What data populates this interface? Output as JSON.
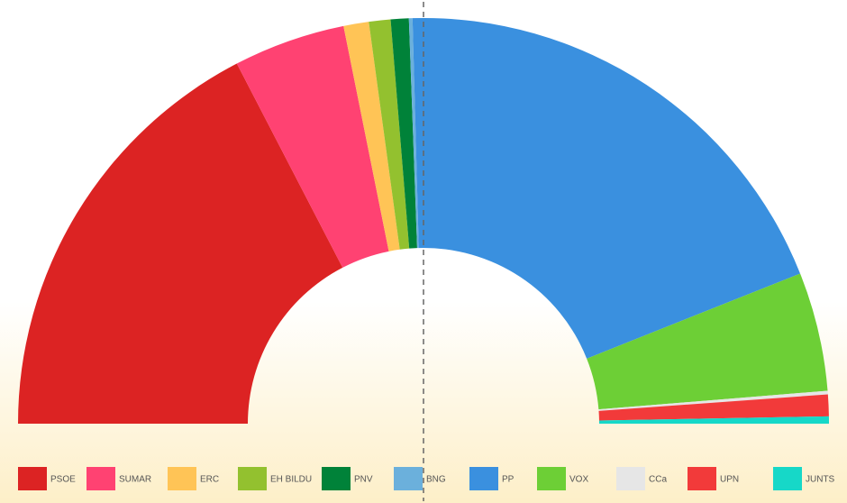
{
  "chart_data": {
    "type": "half-donut",
    "categories": [
      "PSOE",
      "SUMAR",
      "ERC",
      "EH BILDU",
      "PNV",
      "BNG",
      "PP",
      "VOX",
      "CCa",
      "UPN",
      "JUNTS"
    ],
    "values": [
      121,
      31,
      7,
      6,
      5,
      1,
      135,
      33,
      1,
      6,
      2
    ],
    "colors": [
      "#dc2323",
      "#ff4272",
      "#ffc456",
      "#93c12f",
      "#008239",
      "#6bb0dc",
      "#3a90df",
      "#6dcf36",
      "#e6e6e6",
      "#f23a3a",
      "#16d8c8"
    ]
  }
}
